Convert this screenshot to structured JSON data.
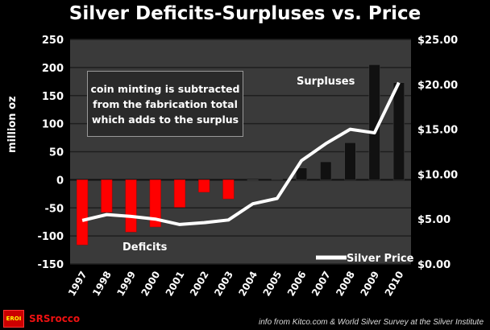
{
  "chart_data": {
    "type": "bar",
    "title": "Silver Deficits-Surpluses vs. Price",
    "ylabel": "million  oz",
    "ylim": [
      -150,
      250
    ],
    "yticks": [
      -150,
      -100,
      -50,
      0,
      50,
      100,
      150,
      200,
      250
    ],
    "y2lim": [
      0,
      25
    ],
    "y2ticks": [
      "$0.00",
      "$5.00",
      "$10.00",
      "$15.00",
      "$20.00",
      "$25.00"
    ],
    "categories": [
      "1997",
      "1998",
      "1999",
      "2000",
      "2001",
      "2002",
      "2003",
      "2004",
      "2005",
      "2006",
      "2007",
      "2008",
      "2009",
      "2010"
    ],
    "series": [
      {
        "type": "bar",
        "values": [
          -116,
          -58,
          -93,
          -84,
          -49,
          -22,
          -34,
          0,
          1,
          21,
          32,
          66,
          205,
          173
        ]
      },
      {
        "type": "line",
        "axis": "right",
        "name": "Silver Price",
        "values": [
          4.85,
          5.5,
          5.3,
          5.0,
          4.4,
          4.6,
          4.9,
          6.7,
          7.3,
          11.5,
          13.4,
          15.0,
          14.6,
          20.2
        ]
      }
    ],
    "colors": {
      "deficit": "#ff0000",
      "surplus": "#111111",
      "price": "#ffffff",
      "plot_bg": "#3a3a3a"
    },
    "grid": true,
    "legend": "bottom-right",
    "annotations": {
      "note": [
        "coin minting is subtracted",
        "from the fabrication total",
        "which adds to the surplus"
      ],
      "surpluses": "Surpluses",
      "deficits": "Deficits"
    }
  },
  "footer": {
    "source": "info from Kitco.com & World Silver Survey at the Silver Institute",
    "logo_text": "SRSrocco",
    "logo_box": "EROI"
  }
}
